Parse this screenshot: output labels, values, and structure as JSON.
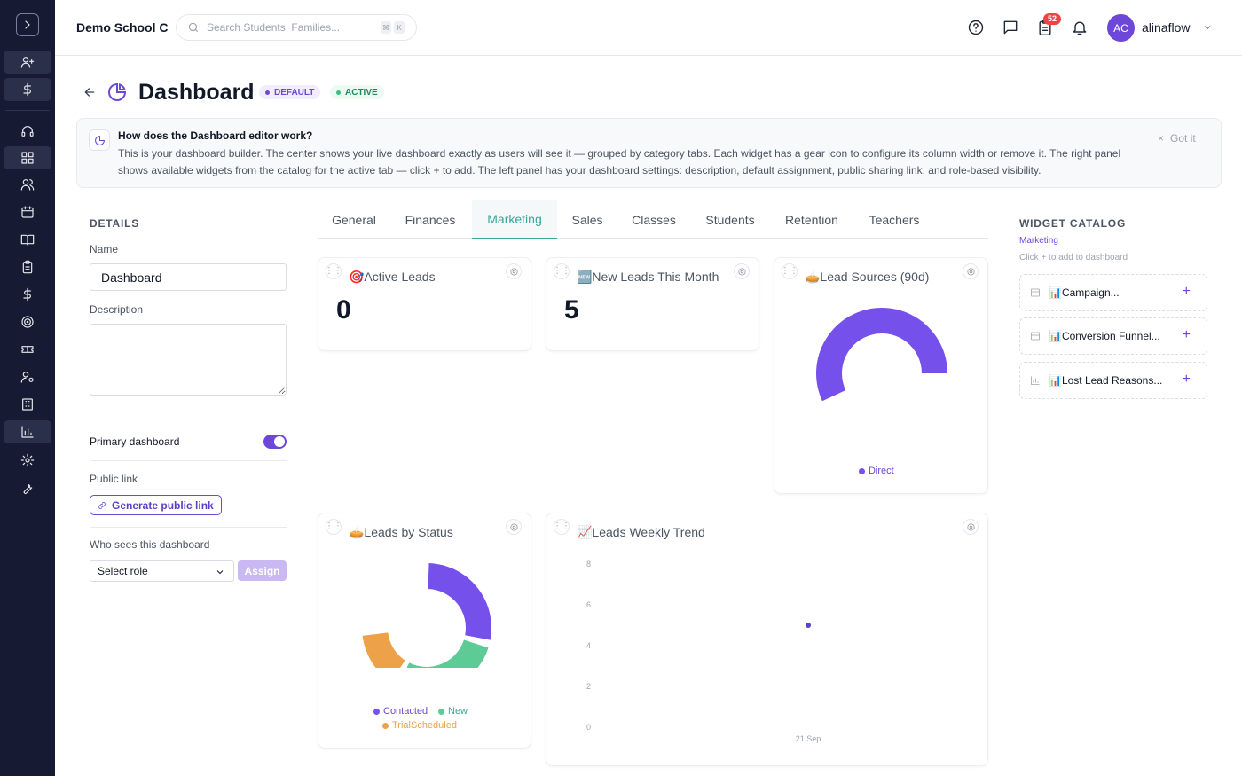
{
  "app": {
    "school_name": "Demo School C",
    "search_placeholder": "Search Students, Families...",
    "search_kbd": [
      "⌘",
      "K"
    ],
    "notifications_count": "52",
    "user": {
      "initials": "AC",
      "name": "alinaflow"
    }
  },
  "rail": {
    "icons": [
      "chevron-right-icon",
      "user-plus-icon",
      "dollar-icon",
      "headset-icon",
      "dashboard-grid-icon",
      "users-icon",
      "calendar-icon",
      "book-open-icon",
      "clipboard-icon",
      "dollar-icon",
      "target-icon",
      "ticket-icon",
      "user-cog-icon",
      "building-icon",
      "bar-chart-icon",
      "settings-icon",
      "wrench-icon"
    ],
    "active_index": 14
  },
  "page": {
    "title": "Dashboard",
    "badges": [
      "DEFAULT",
      "ACTIVE"
    ]
  },
  "banner": {
    "title": "How does the Dashboard editor work?",
    "body": "This is your dashboard builder. The center shows your live dashboard exactly as users will see it — grouped by category tabs. Each widget has a gear icon to configure its column width or remove it. The right panel shows available widgets from the catalog for the active tab — click + to add. The left panel has your dashboard settings: description, default assignment, public sharing link, and role-based visibility.",
    "dismiss_label": "Got it",
    "dismiss_icon": "×"
  },
  "details": {
    "header": "DETAILS",
    "name_label": "Name",
    "name_value": "Dashboard",
    "description_label": "Description",
    "description_value": "",
    "primary_label": "Primary dashboard",
    "primary_on": true,
    "public_link_label": "Public link",
    "generate_link_label": "Generate public link",
    "who_sees_label": "Who sees this dashboard",
    "role_select_value": "Select role",
    "assign_label": "Assign"
  },
  "tabs": {
    "items": [
      "General",
      "Finances",
      "Marketing",
      "Sales",
      "Classes",
      "Students",
      "Retention",
      "Teachers"
    ],
    "active": "Marketing"
  },
  "widgets": {
    "active_leads": {
      "title": "🎯Active Leads",
      "value": "0"
    },
    "new_leads": {
      "title": "🆕New Leads This Month",
      "value": "5"
    },
    "lead_sources": {
      "title": "🥧Lead Sources (90d)",
      "legend": [
        "Direct"
      ]
    },
    "leads_by_status": {
      "title": "🥧Leads by Status",
      "legend": [
        "Contacted",
        "New",
        "TrialScheduled"
      ]
    },
    "weekly_trend": {
      "title": "📈Leads Weekly Trend"
    }
  },
  "colors": {
    "accent": "#6d48d8",
    "teal": "#3aa59a",
    "green": "#5ccb95",
    "orange": "#eda24a",
    "rail_bg": "#161a32"
  },
  "chart_data": [
    {
      "type": "pie",
      "title": "Lead Sources (90d)",
      "categories": [
        "Direct"
      ],
      "values": [
        1
      ],
      "colors": [
        "#7650eb"
      ],
      "legend": "bottom"
    },
    {
      "type": "pie",
      "title": "Leads by Status",
      "categories": [
        "Contacted",
        "New",
        "TrialScheduled"
      ],
      "values": [
        2,
        2,
        1
      ],
      "colors": [
        "#7650eb",
        "#5ccb95",
        "#eda24a"
      ],
      "legend": "bottom"
    },
    {
      "type": "scatter",
      "title": "Leads Weekly Trend",
      "x": [
        "21 Sep"
      ],
      "series": [
        {
          "values": [
            5
          ]
        }
      ],
      "ylim": [
        0,
        8
      ],
      "yticks": [
        "0",
        "2",
        "4",
        "6",
        "8"
      ],
      "grid": false
    }
  ],
  "catalog": {
    "header": "WIDGET CATALOG",
    "category": "Marketing",
    "hint": "Click + to add to dashboard",
    "items": [
      {
        "label": "📊Campaign...",
        "icon": "table-icon"
      },
      {
        "label": "📊Conversion Funnel...",
        "icon": "table-icon"
      },
      {
        "label": "📊Lost Lead Reasons...",
        "icon": "bar-chart-icon"
      }
    ],
    "add_symbol": "+"
  }
}
